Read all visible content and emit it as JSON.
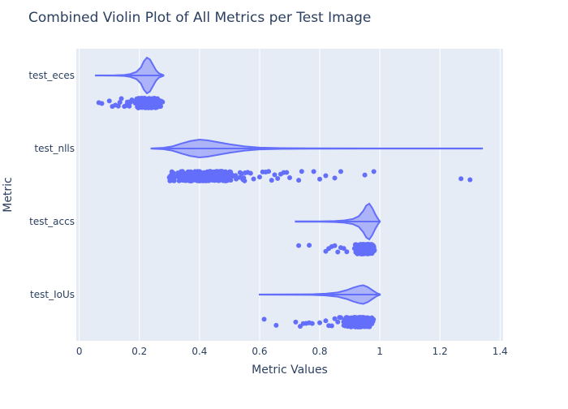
{
  "chart_data": {
    "type": "violin",
    "title": "Combined Violin Plot of All Metrics per Test Image",
    "xlabel": "Metric Values",
    "ylabel": "Metric",
    "xlim": [
      -0.01,
      1.41
    ],
    "x_ticks": [
      "0",
      "0.2",
      "0.4",
      "0.6",
      "0.8",
      "1",
      "1.2",
      "1.4"
    ],
    "grid": true,
    "orientation": "horizontal",
    "colors": {
      "series": "#636efa",
      "fill": "#a3a9f8",
      "plot_bg": "#e5ecf6",
      "grid": "#ffffff",
      "text": "#2a3f5f"
    },
    "series": [
      {
        "name": "test_eces",
        "range": [
          0.055,
          0.28
        ],
        "density": [
          [
            0.055,
            0.005
          ],
          [
            0.12,
            0.01
          ],
          [
            0.15,
            0.03
          ],
          [
            0.17,
            0.08
          ],
          [
            0.19,
            0.2
          ],
          [
            0.205,
            0.45
          ],
          [
            0.215,
            0.8
          ],
          [
            0.225,
            1.0
          ],
          [
            0.235,
            0.9
          ],
          [
            0.245,
            0.6
          ],
          [
            0.255,
            0.3
          ],
          [
            0.265,
            0.12
          ],
          [
            0.28,
            0.02
          ]
        ],
        "points_outliers": [
          0.065,
          0.075,
          0.1,
          0.11,
          0.12,
          0.13,
          0.135,
          0.14,
          0.15,
          0.155,
          0.16,
          0.165,
          0.17,
          0.175
        ],
        "points_center": 0.23,
        "points_spread": 0.025,
        "points_count": 260
      },
      {
        "name": "test_nlls",
        "range": [
          0.24,
          1.34
        ],
        "density": [
          [
            0.24,
            0.01
          ],
          [
            0.28,
            0.04
          ],
          [
            0.31,
            0.12
          ],
          [
            0.34,
            0.28
          ],
          [
            0.37,
            0.42
          ],
          [
            0.4,
            0.5
          ],
          [
            0.43,
            0.45
          ],
          [
            0.46,
            0.36
          ],
          [
            0.5,
            0.24
          ],
          [
            0.55,
            0.12
          ],
          [
            0.6,
            0.05
          ],
          [
            0.67,
            0.02
          ],
          [
            0.8,
            0.01
          ],
          [
            1.0,
            0.005
          ],
          [
            1.34,
            0.004
          ]
        ],
        "points_outliers": [
          0.55,
          0.57,
          0.58,
          0.6,
          0.61,
          0.62,
          0.63,
          0.64,
          0.65,
          0.66,
          0.67,
          0.68,
          0.69,
          0.7,
          0.73,
          0.74,
          0.78,
          0.8,
          0.82,
          0.85,
          0.87,
          0.95,
          0.98,
          1.27,
          1.3
        ],
        "points_center": 0.42,
        "points_spread": 0.07,
        "points_count": 380
      },
      {
        "name": "test_accs",
        "range": [
          0.72,
          1.0
        ],
        "density": [
          [
            0.72,
            0.01
          ],
          [
            0.8,
            0.01
          ],
          [
            0.85,
            0.03
          ],
          [
            0.88,
            0.06
          ],
          [
            0.91,
            0.14
          ],
          [
            0.93,
            0.3
          ],
          [
            0.945,
            0.6
          ],
          [
            0.955,
            0.9
          ],
          [
            0.965,
            1.0
          ],
          [
            0.975,
            0.75
          ],
          [
            0.985,
            0.4
          ],
          [
            0.995,
            0.12
          ],
          [
            1.0,
            0.02
          ]
        ],
        "points_outliers": [
          0.73,
          0.765,
          0.82,
          0.83,
          0.84,
          0.85,
          0.86,
          0.87,
          0.88,
          0.89
        ],
        "points_center": 0.95,
        "points_spread": 0.02,
        "points_count": 260
      },
      {
        "name": "test_IoUs",
        "range": [
          0.6,
          1.0
        ],
        "density": [
          [
            0.6,
            0.005
          ],
          [
            0.7,
            0.01
          ],
          [
            0.78,
            0.02
          ],
          [
            0.82,
            0.05
          ],
          [
            0.86,
            0.12
          ],
          [
            0.89,
            0.25
          ],
          [
            0.91,
            0.38
          ],
          [
            0.93,
            0.48
          ],
          [
            0.945,
            0.52
          ],
          [
            0.96,
            0.42
          ],
          [
            0.975,
            0.25
          ],
          [
            0.99,
            0.08
          ],
          [
            1.0,
            0.02
          ]
        ],
        "points_outliers": [
          0.615,
          0.655,
          0.72,
          0.735,
          0.745,
          0.755,
          0.765,
          0.775,
          0.8,
          0.82,
          0.83,
          0.84,
          0.85,
          0.86,
          0.87
        ],
        "points_center": 0.93,
        "points_spread": 0.03,
        "points_count": 300
      }
    ]
  }
}
